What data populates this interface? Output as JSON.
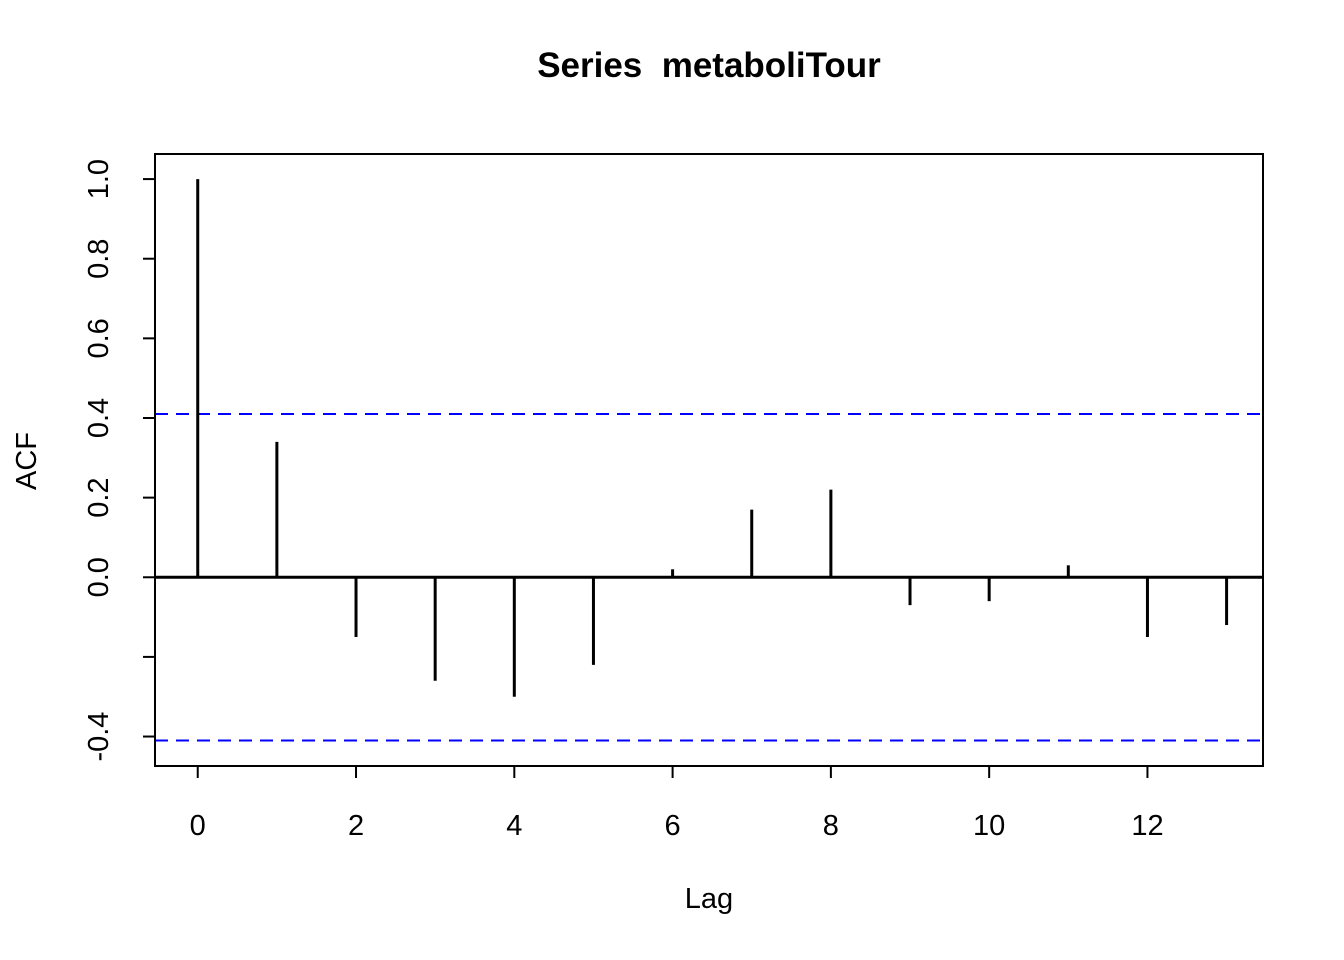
{
  "chart_data": {
    "type": "bar",
    "subtype": "acf-needle-plot",
    "title": "Series  metaboliTour",
    "xlabel": "Lag",
    "ylabel": "ACF",
    "x": [
      0,
      1,
      2,
      3,
      4,
      5,
      6,
      7,
      8,
      9,
      10,
      11,
      12,
      13
    ],
    "values": [
      1.0,
      0.34,
      -0.15,
      -0.26,
      -0.3,
      -0.22,
      0.02,
      0.17,
      0.22,
      -0.07,
      -0.06,
      0.03,
      -0.15,
      -0.12
    ],
    "confidence_bands": {
      "upper": 0.41,
      "lower": -0.41,
      "color": "#0000ff",
      "style": "dashed"
    },
    "bar_color": "#000000",
    "axis_color": "#000000",
    "background_color": "#ffffff",
    "xlim": [
      -0.54,
      13.46
    ],
    "ylim": [
      -0.474,
      1.063
    ],
    "x_ticks": [
      0,
      2,
      4,
      6,
      8,
      10,
      12
    ],
    "x_tick_labels": [
      "0",
      "2",
      "4",
      "6",
      "8",
      "10",
      "12"
    ],
    "y_ticks": [
      1.0,
      0.8,
      0.6,
      0.4,
      0.2,
      0.0,
      -0.2,
      -0.4
    ],
    "y_tick_labels": [
      "1.0",
      "0.8",
      "0.6",
      "0.4",
      "0.2",
      "0.0",
      "",
      "-0.4"
    ],
    "grid": false,
    "legend_position": "none",
    "zero_line": 0.0
  }
}
